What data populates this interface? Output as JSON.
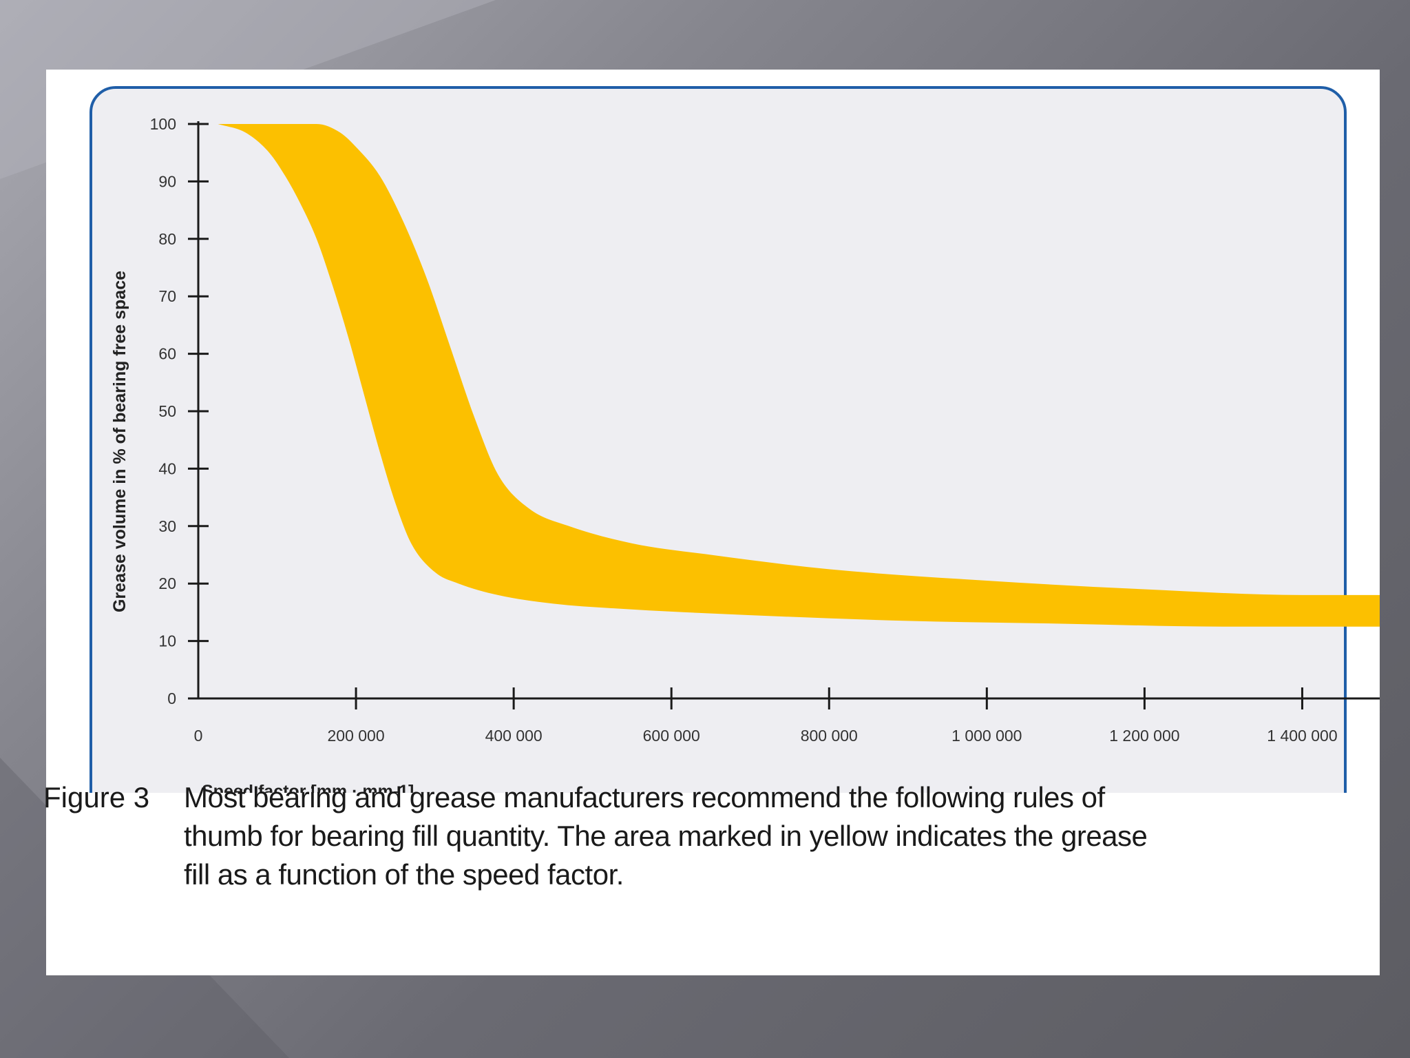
{
  "figure": {
    "label": "Figure 3",
    "caption": "Most bearing and grease manufacturers recommend the following rules of thumb for bearing fill quantity. The area marked in yellow indicates the grease fill as a function of the speed factor."
  },
  "colors": {
    "band": "#fcc000",
    "frame": "#1f5ea8",
    "plot_bg": "#eeeef2",
    "axis": "#1a1a1a"
  },
  "chart_data": {
    "type": "area",
    "title": "",
    "xlabel": "Speed factor [mm · mm-1]",
    "ylabel": "Grease volume in % of bearing free space",
    "xlim": [
      0,
      1500000
    ],
    "ylim": [
      0,
      100
    ],
    "grid": false,
    "x_ticks": [
      0,
      200000,
      400000,
      600000,
      800000,
      1000000,
      1200000,
      1400000
    ],
    "x_tick_labels": [
      "0",
      "200 000",
      "400 000",
      "600 000",
      "800 000",
      "1 000 000",
      "1 200 000",
      "1 400 000"
    ],
    "y_ticks": [
      0,
      10,
      20,
      30,
      40,
      50,
      60,
      70,
      80,
      90,
      100
    ],
    "y_tick_labels": [
      "0",
      "10",
      "20",
      "30",
      "40",
      "50",
      "60",
      "70",
      "80",
      "90",
      "100"
    ],
    "series": [
      {
        "role": "upper",
        "x": [
          25000,
          80000,
          120000,
          150000,
          180000,
          200000,
          230000,
          260000,
          290000,
          320000,
          350000,
          380000,
          420000,
          470000,
          550000,
          650000,
          800000,
          1000000,
          1200000,
          1400000,
          1500000
        ],
        "y": [
          100,
          100,
          100,
          100,
          98.5,
          96,
          91,
          83,
          73,
          61,
          49,
          39,
          33,
          30,
          27,
          25,
          22.5,
          20.5,
          19,
          18,
          18
        ]
      },
      {
        "role": "lower",
        "x": [
          25000,
          60000,
          90000,
          110000,
          130000,
          150000,
          170000,
          190000,
          210000,
          230000,
          250000,
          270000,
          300000,
          330000,
          380000,
          450000,
          550000,
          700000,
          900000,
          1100000,
          1300000,
          1500000
        ],
        "y": [
          100,
          98.5,
          95,
          91,
          86,
          80,
          72,
          63,
          53,
          43,
          34,
          27,
          22,
          20,
          18,
          16.5,
          15.5,
          14.5,
          13.5,
          13,
          12.5,
          12.5
        ]
      }
    ]
  }
}
